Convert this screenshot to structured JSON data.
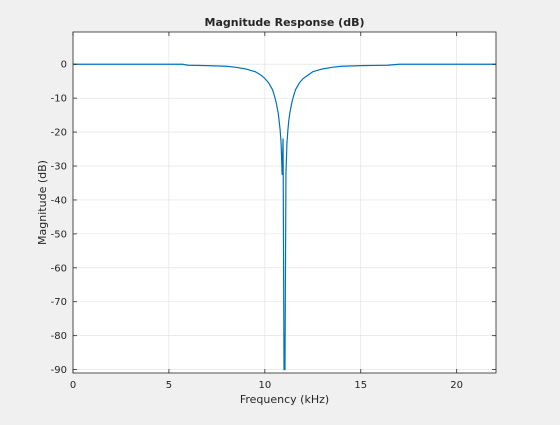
{
  "chart_data": {
    "type": "line",
    "title": "Magnitude Response (dB)",
    "xlabel": "Frequency (kHz)",
    "ylabel": "Magnitude (dB)",
    "xlim": [
      0,
      22.05
    ],
    "ylim": [
      -91,
      9.5
    ],
    "x_ticks": [
      0,
      5,
      10,
      15,
      20
    ],
    "y_ticks": [
      0,
      -10,
      -20,
      -30,
      -40,
      -50,
      -60,
      -70,
      -80,
      -90
    ],
    "grid": true,
    "legend": "none",
    "notch_frequency": 11.025,
    "series": [
      {
        "color": "#0072bd",
        "x": [
          0,
          2,
          4,
          5,
          5.7,
          6,
          7,
          8,
          8.5,
          9,
          9.5,
          9.8,
          10,
          10.2,
          10.4,
          10.5,
          10.6,
          10.7,
          10.8,
          10.85,
          10.9,
          10.95,
          11.0,
          11.025,
          11.05,
          11.1,
          11.15,
          11.2,
          11.25,
          11.3,
          11.4,
          11.5,
          11.6,
          11.8,
          12,
          12.25,
          12.5,
          13,
          13.5,
          14,
          15,
          16.4,
          17,
          19,
          22.05
        ],
        "y": [
          0,
          0,
          0,
          0,
          0,
          -0.3,
          -0.4,
          -0.6,
          -0.9,
          -1.4,
          -2.2,
          -3.2,
          -4.2,
          -5.5,
          -7.5,
          -9.3,
          -11.5,
          -14.5,
          -19.5,
          -23.5,
          -32.5,
          -22,
          -90,
          -90,
          -90,
          -32.5,
          -23.5,
          -19.5,
          -16.5,
          -14.5,
          -11.5,
          -9.3,
          -7.5,
          -5.5,
          -4.2,
          -3.2,
          -2.2,
          -1.4,
          -0.9,
          -0.6,
          -0.4,
          -0.3,
          0,
          0,
          0
        ]
      }
    ]
  }
}
